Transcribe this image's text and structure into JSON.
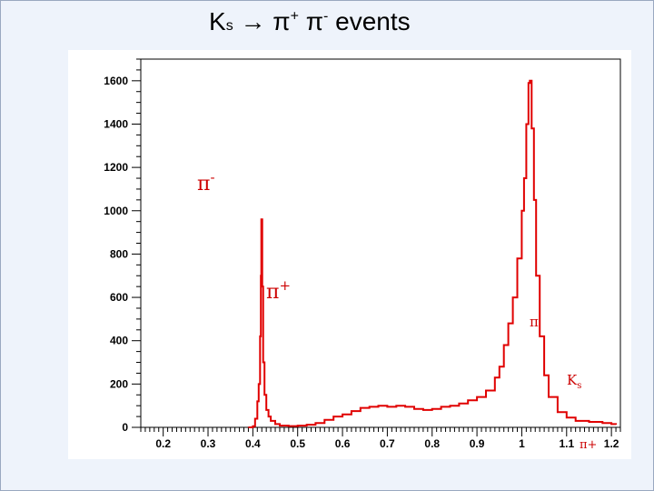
{
  "title": {
    "main": "K",
    "sub": "s",
    "arrow": " → ",
    "pi1": "π",
    "sup1": "+",
    "space": " ",
    "pi2": "π",
    "sup2": "-",
    "rest": " events"
  },
  "annotations": {
    "pi_minus": "π",
    "pi_minus_sup": "-",
    "pi_plus": "π",
    "pi_plus_sup": "+",
    "pi_small": "π",
    "ks_k": "K",
    "ks_s": "s",
    "pi_plus_bottom": "π+"
  },
  "colors": {
    "line": "#e00000",
    "axis": "#000000",
    "background": "#eef3fb"
  },
  "chart_data": {
    "type": "line",
    "xlim": [
      0.15,
      1.22
    ],
    "ylim": [
      0,
      1700
    ],
    "x_ticks": [
      0.2,
      0.3,
      0.4,
      0.5,
      0.6,
      0.7,
      0.8,
      0.9,
      1,
      1.1,
      1.2
    ],
    "y_ticks": [
      0,
      200,
      400,
      600,
      800,
      1000,
      1200,
      1400,
      1600
    ],
    "grid": false,
    "series": [
      {
        "points": [
          [
            0.39,
            0
          ],
          [
            0.4,
            5
          ],
          [
            0.405,
            40
          ],
          [
            0.41,
            120
          ],
          [
            0.413,
            200
          ],
          [
            0.416,
            420
          ],
          [
            0.418,
            700
          ],
          [
            0.419,
            960
          ],
          [
            0.421,
            650
          ],
          [
            0.423,
            300
          ],
          [
            0.426,
            150
          ],
          [
            0.43,
            80
          ],
          [
            0.435,
            50
          ],
          [
            0.44,
            30
          ],
          [
            0.45,
            15
          ],
          [
            0.46,
            8
          ],
          [
            0.48,
            6
          ],
          [
            0.5,
            8
          ],
          [
            0.52,
            12
          ],
          [
            0.54,
            20
          ],
          [
            0.56,
            35
          ],
          [
            0.58,
            50
          ],
          [
            0.6,
            60
          ],
          [
            0.62,
            75
          ],
          [
            0.64,
            90
          ],
          [
            0.66,
            95
          ],
          [
            0.68,
            100
          ],
          [
            0.7,
            95
          ],
          [
            0.72,
            100
          ],
          [
            0.74,
            95
          ],
          [
            0.76,
            85
          ],
          [
            0.78,
            80
          ],
          [
            0.8,
            85
          ],
          [
            0.82,
            95
          ],
          [
            0.84,
            100
          ],
          [
            0.86,
            110
          ],
          [
            0.88,
            125
          ],
          [
            0.9,
            140
          ],
          [
            0.92,
            170
          ],
          [
            0.94,
            230
          ],
          [
            0.95,
            280
          ],
          [
            0.96,
            380
          ],
          [
            0.97,
            480
          ],
          [
            0.98,
            600
          ],
          [
            0.99,
            780
          ],
          [
            1.0,
            1000
          ],
          [
            1.005,
            1150
          ],
          [
            1.01,
            1400
          ],
          [
            1.015,
            1590
          ],
          [
            1.018,
            1600
          ],
          [
            1.022,
            1380
          ],
          [
            1.027,
            1050
          ],
          [
            1.032,
            700
          ],
          [
            1.04,
            420
          ],
          [
            1.05,
            240
          ],
          [
            1.06,
            140
          ],
          [
            1.08,
            70
          ],
          [
            1.1,
            45
          ],
          [
            1.12,
            30
          ],
          [
            1.15,
            25
          ],
          [
            1.18,
            20
          ],
          [
            1.2,
            15
          ],
          [
            1.21,
            12
          ]
        ]
      }
    ]
  }
}
